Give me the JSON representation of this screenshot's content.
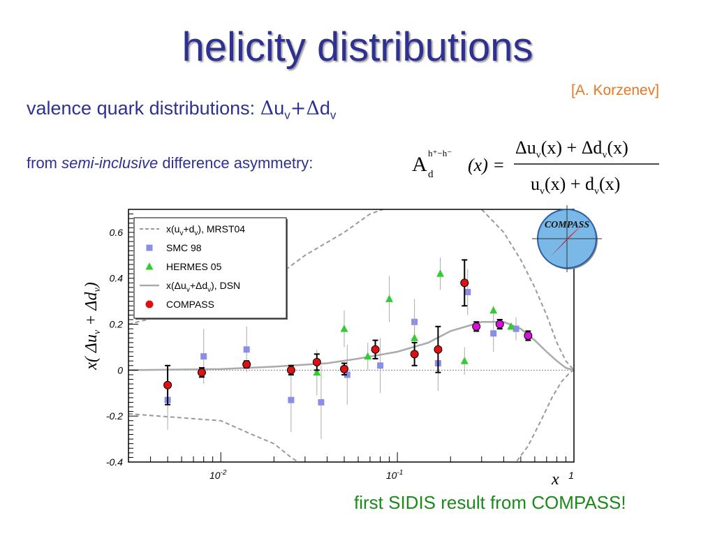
{
  "slide": {
    "title": "helicity distributions",
    "attribution": "[A. Korzenev]",
    "subtitle_prefix": "valence quark distributions: ",
    "subtitle_formula": {
      "d1": "Δ",
      "u": "u",
      "sub1": "v",
      "plus": "+",
      "d2": "Δ",
      "d": "d",
      "sub2": "v"
    },
    "from_prefix": "from ",
    "from_italic": "semi-inclusive",
    "from_suffix": " difference asymmetry:",
    "formula": {
      "A": "A",
      "A_sup": "h⁺−h⁻",
      "A_sub": "d",
      "A_arg": "(x) =",
      "numerator": "Δu",
      "numerator_sub1": "v",
      "numerator_mid": "(x) + Δd",
      "numerator_sub2": "v",
      "numerator_end": "(x)",
      "denominator": "u",
      "denominator_sub1": "v",
      "denominator_mid": "(x) + d",
      "denominator_sub2": "v",
      "denominator_end": "(x)"
    },
    "footnote": "first SIDIS result from COMPASS!"
  },
  "logo": {
    "text": "COMPASS"
  },
  "chart_data": {
    "type": "scatter",
    "xscale": "log",
    "xlim": [
      0.003,
      1.0
    ],
    "ylim": [
      -0.4,
      0.7
    ],
    "xlabel": "x",
    "ylabel": "x( Δu_v + Δd_v)",
    "xticks": [
      {
        "v": 0.01,
        "base": "10",
        "exp": "-2"
      },
      {
        "v": 0.1,
        "base": "10",
        "exp": "-1"
      },
      {
        "v": 1.0,
        "base": "1",
        "exp": ""
      }
    ],
    "yticks": [
      -0.4,
      -0.2,
      0,
      0.2,
      0.4,
      0.6
    ],
    "ytick_labels": [
      "-0.4",
      "-0.2",
      "0",
      "0.2",
      "0.4",
      "0.6"
    ],
    "legend_position": "top-left",
    "legend": [
      {
        "label": "x(u",
        "sub1": "v",
        "mid": "+d",
        "sub2": "v",
        "end": "), MRST04",
        "style": "dashed"
      },
      {
        "label": "SMC 98",
        "style": "square"
      },
      {
        "label": "HERMES 05",
        "style": "triangle"
      },
      {
        "label": "x(Δu",
        "sub1": "v",
        "mid": "+Δd",
        "sub2": "v",
        "end": "), DSN",
        "style": "line"
      },
      {
        "label": "COMPASS",
        "style": "circle"
      }
    ],
    "colors": {
      "smc": "#8a8ee6",
      "hermes": "#33cc33",
      "compass": "#dd1111",
      "compass_hi": "#dd11dd",
      "dsn": "#aaaaaa",
      "mrst": "#999999",
      "frame": "#000000"
    },
    "series": [
      {
        "name": "SMC 98",
        "points": [
          {
            "x": 0.005,
            "y": -0.13,
            "err": 0.13
          },
          {
            "x": 0.008,
            "y": 0.06,
            "err": 0.12
          },
          {
            "x": 0.014,
            "y": 0.09,
            "err": 0.1
          },
          {
            "x": 0.025,
            "y": -0.13,
            "err": 0.14
          },
          {
            "x": 0.037,
            "y": -0.14,
            "err": 0.16
          },
          {
            "x": 0.052,
            "y": -0.02,
            "err": 0.13
          },
          {
            "x": 0.08,
            "y": 0.02,
            "err": 0.12
          },
          {
            "x": 0.125,
            "y": 0.21,
            "err": 0.1
          },
          {
            "x": 0.17,
            "y": 0.03,
            "err": 0.12
          },
          {
            "x": 0.25,
            "y": 0.34,
            "err": 0.1
          },
          {
            "x": 0.35,
            "y": 0.16,
            "err": 0.08
          },
          {
            "x": 0.47,
            "y": 0.18,
            "err": 0.05
          }
        ]
      },
      {
        "name": "HERMES 05",
        "points": [
          {
            "x": 0.035,
            "y": -0.01,
            "err": 0.1
          },
          {
            "x": 0.05,
            "y": 0.18,
            "err": 0.08
          },
          {
            "x": 0.068,
            "y": 0.06,
            "err": 0.06
          },
          {
            "x": 0.09,
            "y": 0.31,
            "err": 0.1
          },
          {
            "x": 0.125,
            "y": 0.14,
            "err": 0.09
          },
          {
            "x": 0.175,
            "y": 0.42,
            "err": 0.07
          },
          {
            "x": 0.24,
            "y": 0.04,
            "err": 0.06
          },
          {
            "x": 0.35,
            "y": 0.26,
            "err": 0.02
          },
          {
            "x": 0.44,
            "y": 0.19,
            "err": 0.015
          }
        ]
      },
      {
        "name": "COMPASS",
        "points": [
          {
            "x": 0.005,
            "y": -0.065,
            "err": 0.085
          },
          {
            "x": 0.0078,
            "y": -0.01,
            "err": 0.02
          },
          {
            "x": 0.014,
            "y": 0.025,
            "err": 0.015
          },
          {
            "x": 0.025,
            "y": 0.0,
            "err": 0.02
          },
          {
            "x": 0.035,
            "y": 0.035,
            "err": 0.035
          },
          {
            "x": 0.05,
            "y": 0.005,
            "err": 0.025
          },
          {
            "x": 0.075,
            "y": 0.09,
            "err": 0.04
          },
          {
            "x": 0.125,
            "y": 0.07,
            "err": 0.05
          },
          {
            "x": 0.17,
            "y": 0.09,
            "err": 0.1
          },
          {
            "x": 0.24,
            "y": 0.38,
            "err": 0.1
          },
          {
            "x": 0.28,
            "y": 0.19,
            "err": 0.02,
            "hi": true
          },
          {
            "x": 0.38,
            "y": 0.2,
            "err": 0.02,
            "hi": true
          },
          {
            "x": 0.55,
            "y": 0.15,
            "err": 0.02,
            "hi": true
          }
        ]
      }
    ],
    "curves": {
      "dsn": [
        [
          0.003,
          0.0
        ],
        [
          0.01,
          0.005
        ],
        [
          0.02,
          0.015
        ],
        [
          0.04,
          0.03
        ],
        [
          0.06,
          0.05
        ],
        [
          0.1,
          0.08
        ],
        [
          0.15,
          0.12
        ],
        [
          0.2,
          0.17
        ],
        [
          0.3,
          0.21
        ],
        [
          0.4,
          0.21
        ],
        [
          0.5,
          0.18
        ],
        [
          0.6,
          0.13
        ],
        [
          0.7,
          0.08
        ],
        [
          0.8,
          0.04
        ],
        [
          0.9,
          0.01
        ],
        [
          1.0,
          0.0
        ]
      ],
      "mrst_upper": [
        [
          0.003,
          0.2
        ],
        [
          0.01,
          0.3
        ],
        [
          0.02,
          0.4
        ],
        [
          0.03,
          0.5
        ],
        [
          0.05,
          0.6
        ],
        [
          0.07,
          0.68
        ],
        [
          0.09,
          0.71
        ]
      ],
      "mrst_upper2": [
        [
          0.3,
          0.7
        ],
        [
          0.4,
          0.6
        ],
        [
          0.5,
          0.48
        ],
        [
          0.6,
          0.36
        ],
        [
          0.7,
          0.24
        ],
        [
          0.8,
          0.12
        ],
        [
          0.9,
          0.04
        ],
        [
          1.0,
          0.0
        ]
      ],
      "mrst_lower": [
        [
          0.003,
          -0.19
        ],
        [
          0.01,
          -0.22
        ],
        [
          0.015,
          -0.28
        ],
        [
          0.02,
          -0.32
        ],
        [
          0.025,
          -0.38
        ],
        [
          0.03,
          -0.42
        ]
      ],
      "mrst_lower2": [
        [
          0.45,
          -0.42
        ],
        [
          0.55,
          -0.33
        ],
        [
          0.65,
          -0.22
        ],
        [
          0.75,
          -0.12
        ],
        [
          0.85,
          -0.05
        ],
        [
          0.95,
          -0.01
        ],
        [
          1.0,
          0.0
        ]
      ]
    }
  }
}
